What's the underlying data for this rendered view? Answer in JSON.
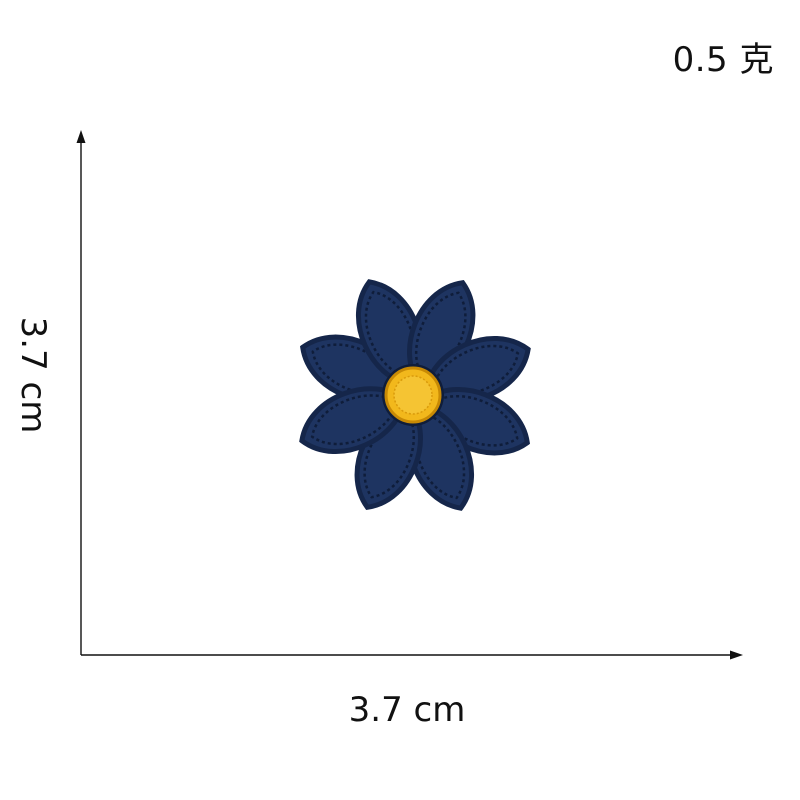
{
  "weight": {
    "label": "0.5 克"
  },
  "dimensions": {
    "height_label": "3.7 cm",
    "width_label": "3.7 cm"
  },
  "product": {
    "icon": "flower-patch-icon",
    "colors": {
      "petal": "#1e3461",
      "petal_stitch": "#0f1d3a",
      "center": "#f2b81c",
      "center_stitch": "#c88a05"
    }
  }
}
